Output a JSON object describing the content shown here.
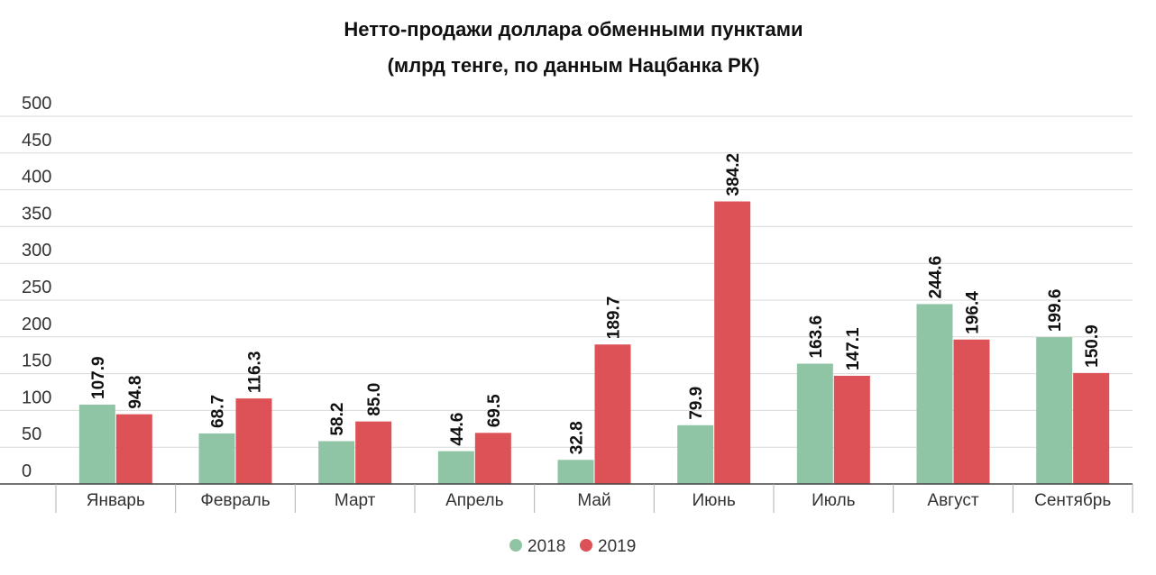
{
  "chart_data": {
    "type": "bar",
    "title": "Нетто-продажи доллара обменными пунктами",
    "subtitle": "(млрд тенге, по данным Нацбанка РК)",
    "categories": [
      "Январь",
      "Февраль",
      "Март",
      "Апрель",
      "Май",
      "Июнь",
      "Июль",
      "Август",
      "Сентябрь"
    ],
    "series": [
      {
        "name": "2018",
        "color": "#8fc4a4",
        "values": [
          107.9,
          68.7,
          58.2,
          44.6,
          32.8,
          79.9,
          163.6,
          244.6,
          199.6
        ]
      },
      {
        "name": "2019",
        "color": "#dd5257",
        "values": [
          94.8,
          116.3,
          85.0,
          69.5,
          189.7,
          384.2,
          147.1,
          196.4,
          150.9
        ]
      }
    ],
    "ylim": [
      0,
      500
    ],
    "yticks": [
      0,
      50,
      100,
      150,
      200,
      250,
      300,
      350,
      400,
      450,
      500
    ],
    "grid": true,
    "legend_position": "bottom-center",
    "data_labels": "rotated-above-bars"
  }
}
